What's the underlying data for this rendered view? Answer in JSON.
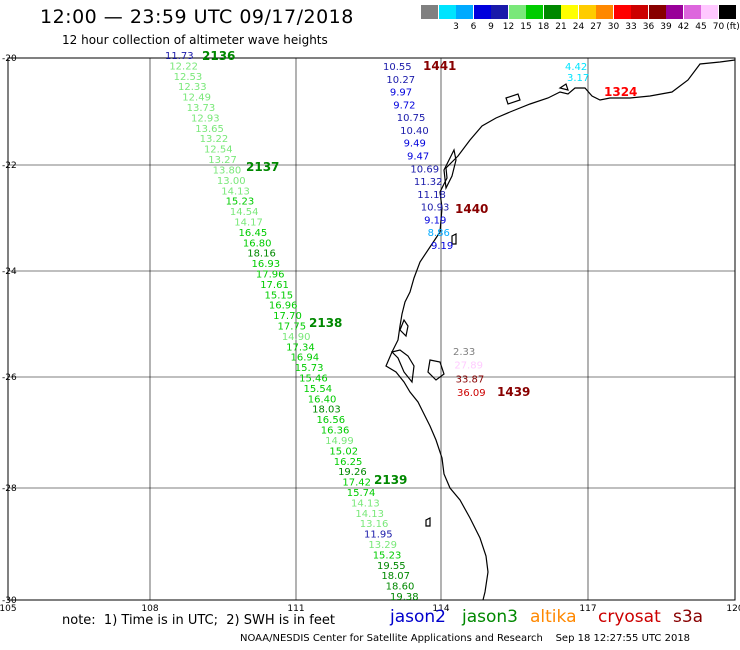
{
  "header": {
    "title": "12:00 — 23:59 UTC 09/17/2018",
    "subtitle": "12 hour collection of altimeter wave heights"
  },
  "scale": {
    "unit_label": "(ft)",
    "items": [
      {
        "label": "",
        "color": "#808080"
      },
      {
        "label": "3",
        "color": "#00e4ff"
      },
      {
        "label": "6",
        "color": "#00aaff"
      },
      {
        "label": "9",
        "color": "#0000dd"
      },
      {
        "label": "12",
        "color": "#1a1aaa"
      },
      {
        "label": "15",
        "color": "#7ae87a"
      },
      {
        "label": "18",
        "color": "#00cc00"
      },
      {
        "label": "21",
        "color": "#008800"
      },
      {
        "label": "24",
        "color": "#ffff00"
      },
      {
        "label": "27",
        "color": "#ffcc00"
      },
      {
        "label": "30",
        "color": "#ff8800"
      },
      {
        "label": "33",
        "color": "#ff0000"
      },
      {
        "label": "36",
        "color": "#cc0000"
      },
      {
        "label": "39",
        "color": "#880000"
      },
      {
        "label": "42",
        "color": "#990099"
      },
      {
        "label": "45",
        "color": "#dd66dd"
      },
      {
        "label": "70",
        "color": "#ffc8ff"
      },
      {
        "label": "",
        "color": "#000000"
      }
    ]
  },
  "map": {
    "lat_labels": [
      "-20",
      "-22",
      "-24",
      "-26",
      "-28",
      "-30"
    ],
    "lon_labels": [
      "105",
      "108",
      "111",
      "114",
      "117",
      "120"
    ],
    "passes": [
      {
        "id": "2136",
        "color": "#008800"
      },
      {
        "id": "2137",
        "color": "#008800"
      },
      {
        "id": "2138",
        "color": "#008800"
      },
      {
        "id": "2139",
        "color": "#008800"
      },
      {
        "id": "1441",
        "color": "#880000"
      },
      {
        "id": "1440",
        "color": "#880000"
      },
      {
        "id": "1439",
        "color": "#880000"
      },
      {
        "id": "1324",
        "color": "#ff0000"
      }
    ],
    "track_west": [
      {
        "v": "11.73",
        "c": "#1a1aaa"
      },
      {
        "v": "12.22",
        "c": "#7ae87a"
      },
      {
        "v": "12.53",
        "c": "#7ae87a"
      },
      {
        "v": "12.33",
        "c": "#7ae87a"
      },
      {
        "v": "12.49",
        "c": "#7ae87a"
      },
      {
        "v": "13.73",
        "c": "#7ae87a"
      },
      {
        "v": "12.93",
        "c": "#7ae87a"
      },
      {
        "v": "13.65",
        "c": "#7ae87a"
      },
      {
        "v": "13.22",
        "c": "#7ae87a"
      },
      {
        "v": "12.54",
        "c": "#7ae87a"
      },
      {
        "v": "13.27",
        "c": "#7ae87a"
      },
      {
        "v": "13.80",
        "c": "#7ae87a"
      },
      {
        "v": "13.00",
        "c": "#7ae87a"
      },
      {
        "v": "14.13",
        "c": "#7ae87a"
      },
      {
        "v": "15.23",
        "c": "#00cc00"
      },
      {
        "v": "14.54",
        "c": "#7ae87a"
      },
      {
        "v": "14.17",
        "c": "#7ae87a"
      },
      {
        "v": "16.45",
        "c": "#00cc00"
      },
      {
        "v": "16.80",
        "c": "#00cc00"
      },
      {
        "v": "18.16",
        "c": "#008800"
      },
      {
        "v": "16.93",
        "c": "#00cc00"
      },
      {
        "v": "17.96",
        "c": "#00cc00"
      },
      {
        "v": "17.61",
        "c": "#00cc00"
      },
      {
        "v": "15.15",
        "c": "#00cc00"
      },
      {
        "v": "16.96",
        "c": "#00cc00"
      },
      {
        "v": "17.70",
        "c": "#00cc00"
      },
      {
        "v": "17.75",
        "c": "#00cc00"
      },
      {
        "v": "14.90",
        "c": "#7ae87a"
      },
      {
        "v": "17.34",
        "c": "#00cc00"
      },
      {
        "v": "16.94",
        "c": "#00cc00"
      },
      {
        "v": "15.73",
        "c": "#00cc00"
      },
      {
        "v": "15.46",
        "c": "#00cc00"
      },
      {
        "v": "15.54",
        "c": "#00cc00"
      },
      {
        "v": "16.40",
        "c": "#00cc00"
      },
      {
        "v": "18.03",
        "c": "#008800"
      },
      {
        "v": "16.56",
        "c": "#00cc00"
      },
      {
        "v": "16.36",
        "c": "#00cc00"
      },
      {
        "v": "14.99",
        "c": "#7ae87a"
      },
      {
        "v": "15.02",
        "c": "#00cc00"
      },
      {
        "v": "16.25",
        "c": "#00cc00"
      },
      {
        "v": "19.26",
        "c": "#008800"
      },
      {
        "v": "17.42",
        "c": "#00cc00"
      },
      {
        "v": "15.74",
        "c": "#00cc00"
      },
      {
        "v": "14.13",
        "c": "#7ae87a"
      },
      {
        "v": "14.13",
        "c": "#7ae87a"
      },
      {
        "v": "13.16",
        "c": "#7ae87a"
      },
      {
        "v": "11.95",
        "c": "#1a1aaa"
      },
      {
        "v": "13.29",
        "c": "#7ae87a"
      },
      {
        "v": "15.23",
        "c": "#00cc00"
      },
      {
        "v": "19.55",
        "c": "#008800"
      },
      {
        "v": "18.07",
        "c": "#008800"
      },
      {
        "v": "18.60",
        "c": "#008800"
      },
      {
        "v": "19.38",
        "c": "#008800"
      }
    ],
    "track_east": [
      {
        "v": "10.55",
        "c": "#1a1aaa"
      },
      {
        "v": "10.27",
        "c": "#1a1aaa"
      },
      {
        "v": "9.97",
        "c": "#0000dd"
      },
      {
        "v": "9.72",
        "c": "#0000dd"
      },
      {
        "v": "10.75",
        "c": "#1a1aaa"
      },
      {
        "v": "10.40",
        "c": "#1a1aaa"
      },
      {
        "v": "9.49",
        "c": "#0000dd"
      },
      {
        "v": "9.47",
        "c": "#0000dd"
      },
      {
        "v": "10.69",
        "c": "#1a1aaa"
      },
      {
        "v": "11.32",
        "c": "#1a1aaa"
      },
      {
        "v": "11.18",
        "c": "#1a1aaa"
      },
      {
        "v": "10.93",
        "c": "#1a1aaa"
      },
      {
        "v": "9.19",
        "c": "#0000dd"
      },
      {
        "v": "8.86",
        "c": "#00aaff"
      },
      {
        "v": "9.19",
        "c": "#0000dd"
      }
    ],
    "track_south": [
      {
        "v": "2.33",
        "c": "#808080"
      },
      {
        "v": "27.89",
        "c": "#ffccff"
      },
      {
        "v": "33.87",
        "c": "#880000"
      },
      {
        "v": "36.09",
        "c": "#cc0000"
      }
    ],
    "track_ne": [
      {
        "v": "4.42",
        "c": "#00e4ff"
      },
      {
        "v": "3.17",
        "c": "#00e4ff"
      }
    ]
  },
  "note": "note:  1) Time is in UTC;  2) SWH is in feet",
  "satellites": [
    {
      "name": "jason2",
      "color": "#0000cc"
    },
    {
      "name": "jason3",
      "color": "#008800"
    },
    {
      "name": "altika",
      "color": "#ff8800"
    },
    {
      "name": "cryosat",
      "color": "#cc0000"
    },
    {
      "name": "s3a",
      "color": "#880000"
    }
  ],
  "footer": "NOAA/NESDIS Center for Satellite Applications and Research    Sep 18 12:27:55 UTC 2018"
}
